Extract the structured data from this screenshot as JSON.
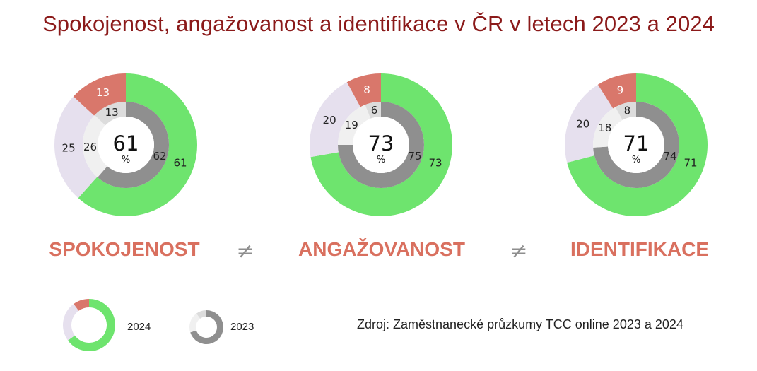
{
  "title": "Spokojenost, angažovanost a identifikace v ČR v letech 2023 a 2024",
  "source": "Zdroj: Zaměstnanecké průzkumy TCC online 2023 a 2024",
  "neq_symbol": "≠",
  "percent_symbol": "%",
  "colors": {
    "outer_positive": "#6ee46e",
    "outer_neutral": "#e6e0ee",
    "outer_negative": "#d9776b",
    "inner_positive": "#8f8f8f",
    "inner_neutral": "#f0f0f0",
    "inner_negative": "#dcdcdc",
    "label_color": "#d9705f"
  },
  "legend": {
    "outer_label": "2024",
    "inner_label": "2023"
  },
  "chart_data": [
    {
      "type": "pie",
      "label": "SPOKOJENOST",
      "center_value": "61",
      "year_2024": {
        "positive": 61,
        "neutral": 25,
        "negative": 13
      },
      "year_2023": {
        "positive": 62,
        "neutral": 26,
        "negative": 13
      }
    },
    {
      "type": "pie",
      "label": "ANGAŽOVANOST",
      "center_value": "73",
      "year_2024": {
        "positive": 73,
        "neutral": 20,
        "negative": 8
      },
      "year_2023": {
        "positive": 75,
        "neutral": 19,
        "negative": 6
      }
    },
    {
      "type": "pie",
      "label": "IDENTIFIKACE",
      "center_value": "71",
      "year_2024": {
        "positive": 71,
        "neutral": 20,
        "negative": 9
      },
      "year_2023": {
        "positive": 74,
        "neutral": 18,
        "negative": 8
      }
    }
  ]
}
